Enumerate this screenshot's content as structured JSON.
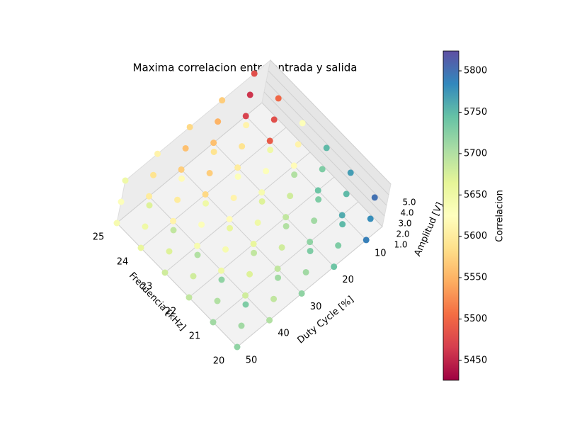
{
  "chart_data": {
    "type": "scatter3d",
    "title": "Maxima correlacion entre entrada y salida",
    "xlabel": "Duty Cycle [%]",
    "ylabel": "Frecuencia [kHz]",
    "zlabel": "Amplitud [V]",
    "colorbar_label": "Correlacion",
    "colormap": "Spectral",
    "xlim": [
      5,
      50
    ],
    "ylim": [
      20,
      25
    ],
    "zlim": [
      1,
      5
    ],
    "clim": [
      5426,
      5824
    ],
    "xticks": [
      10,
      20,
      30,
      40,
      50
    ],
    "yticks": [
      20,
      21,
      22,
      23,
      24,
      25
    ],
    "zticks": [
      {
        "value": 1,
        "label": "1.0"
      },
      {
        "value": 2,
        "label": "2.0"
      },
      {
        "value": 3,
        "label": "3.0"
      },
      {
        "value": 4,
        "label": "4.0"
      },
      {
        "value": 5,
        "label": "5.0"
      }
    ],
    "cticks": [
      5450,
      5500,
      5550,
      5600,
      5650,
      5700,
      5750,
      5800
    ],
    "points": {
      "x": [
        10,
        10,
        10,
        20,
        20,
        20,
        30,
        30,
        30,
        40,
        40,
        40,
        50,
        50,
        50,
        10,
        10,
        10,
        20,
        20,
        20,
        30,
        30,
        30,
        40,
        40,
        40,
        50,
        50,
        50,
        10,
        10,
        10,
        20,
        20,
        20,
        30,
        30,
        30,
        40,
        40,
        40,
        50,
        50,
        50,
        10,
        10,
        10,
        20,
        20,
        20,
        30,
        30,
        30,
        40,
        40,
        40,
        50,
        50,
        50,
        10,
        10,
        10,
        20,
        20,
        20,
        30,
        30,
        30,
        40,
        40,
        40,
        50,
        50,
        50,
        10,
        10,
        10,
        20,
        20,
        20,
        30,
        30,
        30,
        40,
        40,
        40,
        50,
        50,
        50
      ],
      "y": [
        20,
        20,
        20,
        20,
        20,
        20,
        20,
        20,
        20,
        20,
        20,
        20,
        20,
        20,
        20,
        21,
        21,
        21,
        21,
        21,
        21,
        21,
        21,
        21,
        21,
        21,
        21,
        21,
        21,
        21,
        22,
        22,
        22,
        22,
        22,
        22,
        22,
        22,
        22,
        22,
        22,
        22,
        22,
        22,
        22,
        23,
        23,
        23,
        23,
        23,
        23,
        23,
        23,
        23,
        23,
        23,
        23,
        23,
        23,
        23,
        24,
        24,
        24,
        24,
        24,
        24,
        24,
        24,
        24,
        24,
        24,
        24,
        24,
        24,
        24,
        25,
        25,
        25,
        25,
        25,
        25,
        25,
        25,
        25,
        25,
        25,
        25,
        25,
        25,
        25
      ],
      "z": [
        1,
        3,
        5,
        1,
        3,
        5,
        1,
        3,
        5,
        1,
        3,
        5,
        1,
        3,
        5,
        1,
        3,
        5,
        1,
        3,
        5,
        1,
        3,
        5,
        1,
        3,
        5,
        1,
        3,
        5,
        1,
        3,
        5,
        1,
        3,
        5,
        1,
        3,
        5,
        1,
        3,
        5,
        1,
        3,
        5,
        1,
        3,
        5,
        1,
        3,
        5,
        1,
        3,
        5,
        1,
        3,
        5,
        1,
        3,
        5,
        1,
        3,
        5,
        1,
        3,
        5,
        1,
        3,
        5,
        1,
        3,
        5,
        1,
        3,
        5,
        1,
        3,
        5,
        1,
        3,
        5,
        1,
        3,
        5,
        1,
        3,
        5,
        1,
        3,
        5
      ],
      "c": [
        5790,
        5780,
        5800,
        5740,
        5730,
        5750,
        5720,
        5710,
        5730,
        5700,
        5690,
        5710,
        5720,
        5710,
        5730,
        5760,
        5750,
        5770,
        5720,
        5710,
        5730,
        5690,
        5680,
        5700,
        5680,
        5670,
        5690,
        5710,
        5700,
        5720,
        5740,
        5730,
        5750,
        5690,
        5680,
        5700,
        5660,
        5650,
        5670,
        5650,
        5640,
        5660,
        5690,
        5680,
        5700,
        5620,
        5610,
        5630,
        5640,
        5630,
        5650,
        5620,
        5610,
        5630,
        5640,
        5630,
        5650,
        5680,
        5670,
        5690,
        5490,
        5480,
        5500,
        5600,
        5590,
        5610,
        5580,
        5570,
        5590,
        5610,
        5600,
        5620,
        5660,
        5650,
        5670,
        5470,
        5460,
        5480,
        5560,
        5550,
        5570,
        5570,
        5560,
        5580,
        5600,
        5590,
        5610,
        5640,
        5630,
        5650
      ]
    }
  }
}
